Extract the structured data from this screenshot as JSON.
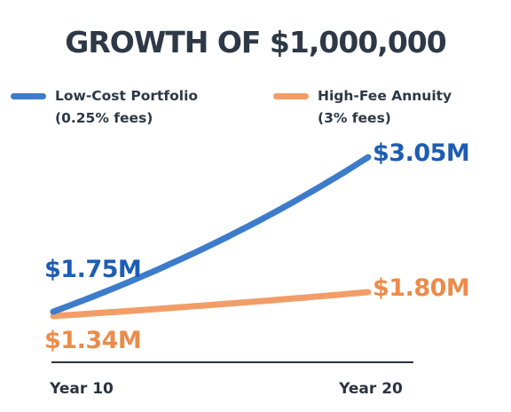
{
  "chart_data": {
    "type": "line",
    "title": "GROWTH OF $1,000,000",
    "categories": [
      "Year 10",
      "Year 20"
    ],
    "series": [
      {
        "name_lines": [
          "Low-Cost Portfolio",
          "(0.25% fees)"
        ],
        "color": "#3d7ccb",
        "start_value": 1.75,
        "end_value": 3.05,
        "start_label": "$1.75M",
        "end_label": "$3.05M"
      },
      {
        "name_lines": [
          "High-Fee Annuity",
          "(3% fees)"
        ],
        "color": "#f29d68",
        "start_value": 1.34,
        "end_value": 1.8,
        "start_label": "$1.34M",
        "end_label": "$1.80M"
      }
    ],
    "label_colors": {
      "low": "#1d5db3",
      "high": "#ec8b4a"
    },
    "grid": false,
    "legend_position": "top"
  }
}
